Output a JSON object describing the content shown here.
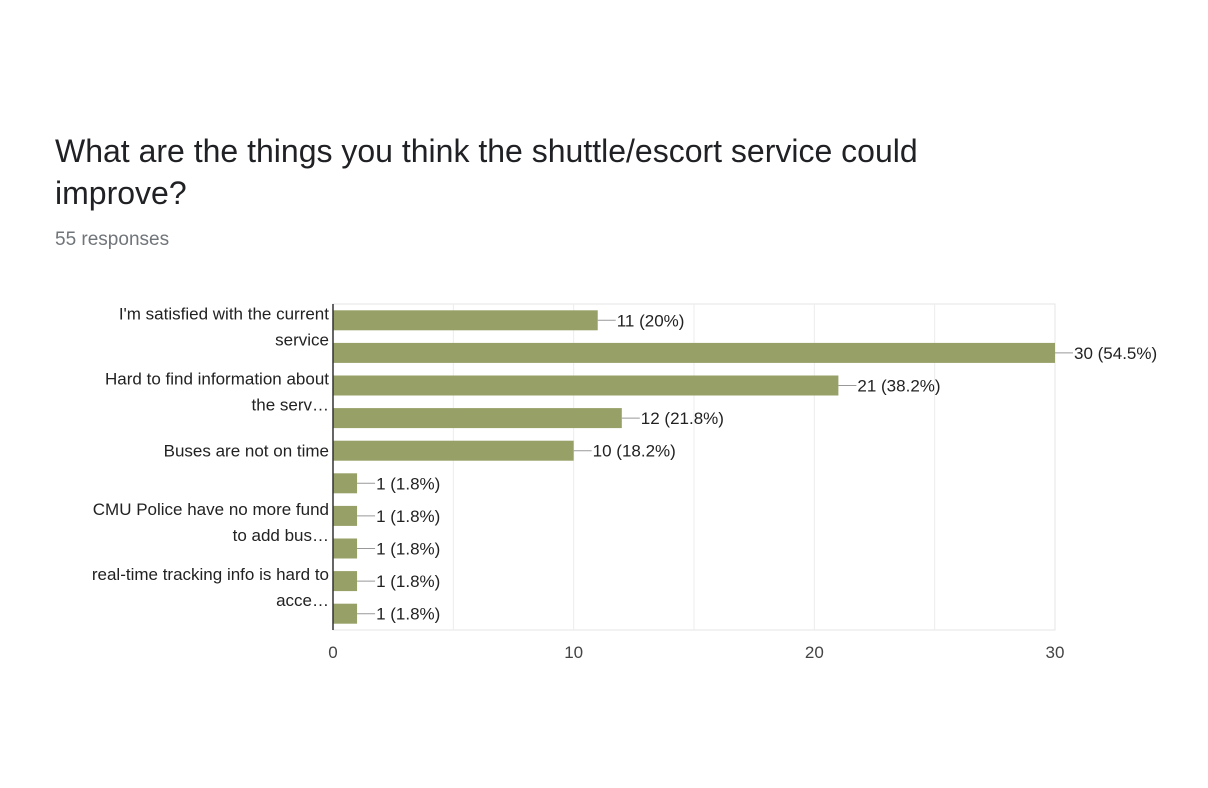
{
  "page": {
    "title": "What are the things you think the shuttle/escort service could improve?",
    "subtitle": "55 responses"
  },
  "chart_data": {
    "type": "bar",
    "orientation": "horizontal",
    "bar_color": "#97a067",
    "categories": [
      [
        "I'm satisfied with the current",
        "service"
      ],
      [],
      [
        "Hard to find information about",
        "the serv…"
      ],
      [],
      [
        "Buses are not on time"
      ],
      [],
      [
        "CMU Police have no more fund",
        "to add bus…"
      ],
      [],
      [
        "real-time tracking info is hard to",
        "acce…"
      ],
      []
    ],
    "values": [
      11,
      30,
      21,
      12,
      10,
      1,
      1,
      1,
      1,
      1
    ],
    "data_labels": [
      "11 (20%)",
      "30 (54.5%)",
      "21 (38.2%)",
      "12 (21.8%)",
      "10 (18.2%)",
      "1 (1.8%)",
      "1 (1.8%)",
      "1 (1.8%)",
      "1 (1.8%)",
      "1 (1.8%)"
    ],
    "xlim": [
      0,
      30
    ],
    "x_ticks": [
      0,
      10,
      20,
      30
    ],
    "grid": true
  }
}
